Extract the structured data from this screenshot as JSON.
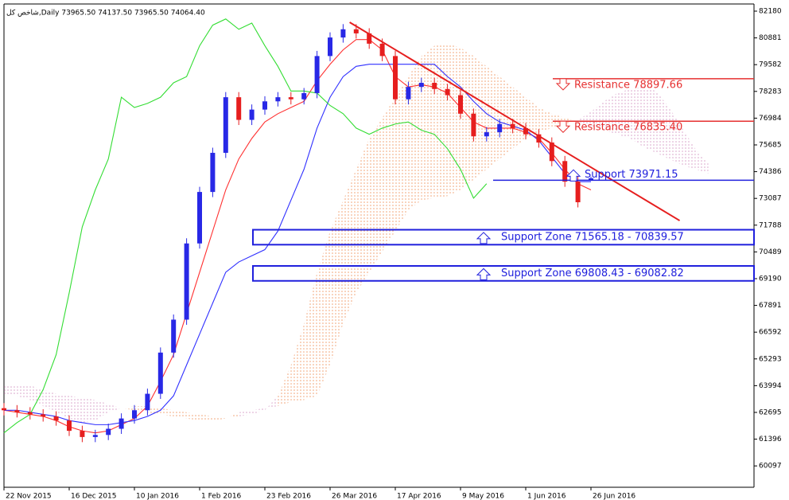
{
  "chart_data": {
    "type": "candlestick",
    "title": "شاخص کل,Daily  73965.50 74137.50 73965.50 74064.40",
    "categories": [
      "22 Nov 2015",
      null,
      null,
      null,
      null,
      "16 Dec 2015",
      null,
      null,
      null,
      null,
      "10 Jan 2016",
      null,
      null,
      null,
      null,
      "1 Feb 2016",
      null,
      null,
      null,
      null,
      "23 Feb 2016",
      null,
      null,
      null,
      null,
      "26 Mar 2016",
      null,
      null,
      null,
      null,
      "17 Apr 2016",
      null,
      null,
      null,
      null,
      "9 May 2016",
      null,
      null,
      null,
      null,
      "1 Jun 2016",
      null,
      null,
      null,
      null,
      "26 Jun 2016",
      null,
      null,
      null,
      null,
      null,
      null,
      null,
      null,
      null
    ],
    "open": [
      62900,
      62800,
      62700,
      62600,
      62500,
      62300,
      61800,
      61500,
      61600,
      61900,
      62400,
      62800,
      63600,
      65600,
      67200,
      70900,
      73400,
      75300,
      78000,
      76900,
      77400,
      77800,
      78000,
      77900,
      78200,
      80000,
      80900,
      81300,
      81100,
      80600,
      80000,
      77900,
      78500,
      78700,
      78400,
      78100,
      77200,
      76100,
      76300,
      76700,
      76500,
      76200,
      75800,
      74900,
      73900,
      73965.5,
      null,
      null,
      null,
      null,
      null,
      null,
      null,
      null,
      null
    ],
    "high": [
      63150,
      63050,
      62950,
      62850,
      62750,
      62550,
      62050,
      61850,
      62150,
      62650,
      63050,
      63850,
      65850,
      67450,
      71150,
      73650,
      75550,
      78250,
      78250,
      77650,
      78050,
      78250,
      78250,
      78450,
      80250,
      81150,
      81550,
      81550,
      81350,
      80850,
      80250,
      78750,
      78950,
      78950,
      78650,
      78350,
      77450,
      76550,
      76950,
      76950,
      76750,
      76450,
      76050,
      75150,
      74150,
      74137.5,
      null,
      null,
      null,
      null,
      null,
      null,
      null,
      null,
      null
    ],
    "low": [
      62550,
      62450,
      62350,
      62250,
      62050,
      61550,
      61250,
      61250,
      61350,
      61650,
      62150,
      62550,
      63350,
      65350,
      66950,
      70650,
      73150,
      75050,
      76650,
      76650,
      77150,
      77550,
      77650,
      77650,
      77950,
      79750,
      80650,
      80850,
      80350,
      79750,
      77650,
      77650,
      78250,
      78150,
      77850,
      76950,
      75850,
      75850,
      76050,
      76250,
      75950,
      75550,
      74650,
      73650,
      72650,
      73965.5,
      null,
      null,
      null,
      null,
      null,
      null,
      null,
      null,
      null
    ],
    "close": [
      62800,
      62700,
      62600,
      62500,
      62300,
      61800,
      61500,
      61600,
      61900,
      62400,
      62800,
      63600,
      65600,
      67200,
      70900,
      73400,
      75300,
      78000,
      76900,
      77400,
      77800,
      78000,
      77900,
      78200,
      80000,
      80900,
      81300,
      81100,
      80600,
      80000,
      77900,
      78500,
      78700,
      78400,
      78100,
      77200,
      76100,
      76300,
      76700,
      76500,
      76200,
      75800,
      74900,
      73900,
      72900,
      74064.4,
      null,
      null,
      null,
      null,
      null,
      null,
      null,
      null,
      null
    ],
    "up_color": "#2828e6",
    "down_color": "#e61e1e",
    "lines": [
      {
        "color": "#ff3030",
        "values": [
          62800,
          62700,
          62600,
          62500,
          62300,
          62000,
          61800,
          61700,
          61800,
          62100,
          62400,
          63000,
          64200,
          65500,
          67500,
          69500,
          71500,
          73500,
          75000,
          76000,
          76800,
          77200,
          77500,
          77800,
          78800,
          79600,
          80300,
          80800,
          80800,
          80300,
          79000,
          78500,
          78600,
          78500,
          78200,
          77500,
          76800,
          76500,
          76500,
          76500,
          76300,
          76000,
          75300,
          74500,
          73800,
          73500,
          null,
          null,
          null,
          null,
          null,
          null,
          null,
          null,
          null
        ]
      },
      {
        "color": "#3030ff",
        "values": [
          62800,
          62800,
          62700,
          62600,
          62500,
          62300,
          62200,
          62100,
          62100,
          62200,
          62300,
          62500,
          62800,
          63500,
          65000,
          66500,
          68000,
          69500,
          70000,
          70300,
          70600,
          71500,
          73000,
          74500,
          76500,
          78000,
          79000,
          79500,
          79600,
          79600,
          79600,
          79600,
          79600,
          79600,
          79000,
          78500,
          77800,
          77200,
          76800,
          76600,
          76400,
          75900,
          75100,
          74300,
          73900,
          73900,
          null,
          null,
          null,
          null,
          null,
          null,
          null,
          null,
          null
        ]
      },
      {
        "color": "#33dd33",
        "values": [
          61700,
          62200,
          62600,
          63800,
          65500,
          68500,
          71700,
          73500,
          75000,
          78000,
          77500,
          77700,
          78000,
          78700,
          79000,
          80500,
          81500,
          81800,
          81300,
          81600,
          80500,
          79500,
          78300,
          78300,
          78200,
          77600,
          77200,
          76500,
          76200,
          76500,
          76700,
          76800,
          76400,
          76200,
          75500,
          74500,
          73100,
          73800,
          null,
          null,
          null,
          null,
          null,
          null,
          null,
          null,
          null,
          null,
          null,
          null,
          null,
          null,
          null,
          null,
          null
        ]
      }
    ],
    "cloud": {
      "up_color": "#f0a070",
      "down_color": "#d8a0c8",
      "span_a": [
        63600,
        63500,
        63300,
        63000,
        62700,
        62400,
        62200,
        62300,
        62700,
        62900,
        63000,
        63000,
        62900,
        62800,
        62700,
        62600,
        62500,
        62500,
        62500,
        62600,
        62800,
        63500,
        65000,
        67000,
        69500,
        71500,
        73000,
        74500,
        76000,
        77000,
        78000,
        79000,
        80000,
        80500,
        80600,
        80400,
        80000,
        79500,
        79000,
        78500,
        78000,
        77500,
        77200,
        77000,
        76800,
        76600,
        76400,
        76200,
        76000,
        75600,
        75300,
        75000,
        74700,
        74500,
        74300
      ],
      "span_b": [
        64000,
        64000,
        64000,
        63800,
        63600,
        63500,
        63400,
        63300,
        63100,
        62900,
        62800,
        62700,
        62600,
        62500,
        62400,
        62300,
        62300,
        62400,
        62700,
        62800,
        62900,
        63000,
        63200,
        63300,
        63500,
        65000,
        67000,
        68500,
        69500,
        70500,
        71500,
        72500,
        73000,
        73100,
        73200,
        73500,
        74000,
        74500,
        75000,
        75500,
        76000,
        76300,
        76500,
        76700,
        76900,
        77300,
        77800,
        78200,
        78400,
        78500,
        78300,
        77500,
        76500,
        75500,
        74800
      ]
    },
    "trendline": {
      "color": "#e61e1e",
      "x": [
        26.5,
        51.8
      ],
      "y": [
        81640,
        72010
      ]
    },
    "levels": [
      {
        "label": "Resistance 78897.66",
        "value": 78897.66,
        "color": "#e63030"
      },
      {
        "label": "Resistance 76835.40",
        "value": 76835.4,
        "color": "#e63030"
      },
      {
        "label": "Support 73971.15",
        "value": 73971.15,
        "color": "#2020dd"
      }
    ],
    "zones": [
      {
        "label": "Support Zone 71565.18 - 70839.57",
        "top": 71565.18,
        "bottom": 70839.57,
        "color": "#2020dd"
      },
      {
        "label": "Support Zone 69808.43 - 69082.82",
        "top": 69808.43,
        "bottom": 69082.82,
        "color": "#2020dd"
      }
    ],
    "ylim": [
      59060,
      82528
    ],
    "yticks": [
      60097,
      61396,
      62695,
      63994,
      65293,
      66592,
      67891,
      69190,
      70489,
      71788,
      73087,
      74386,
      75685,
      76984,
      78283,
      79582,
      80881,
      82180
    ],
    "grid": false
  }
}
